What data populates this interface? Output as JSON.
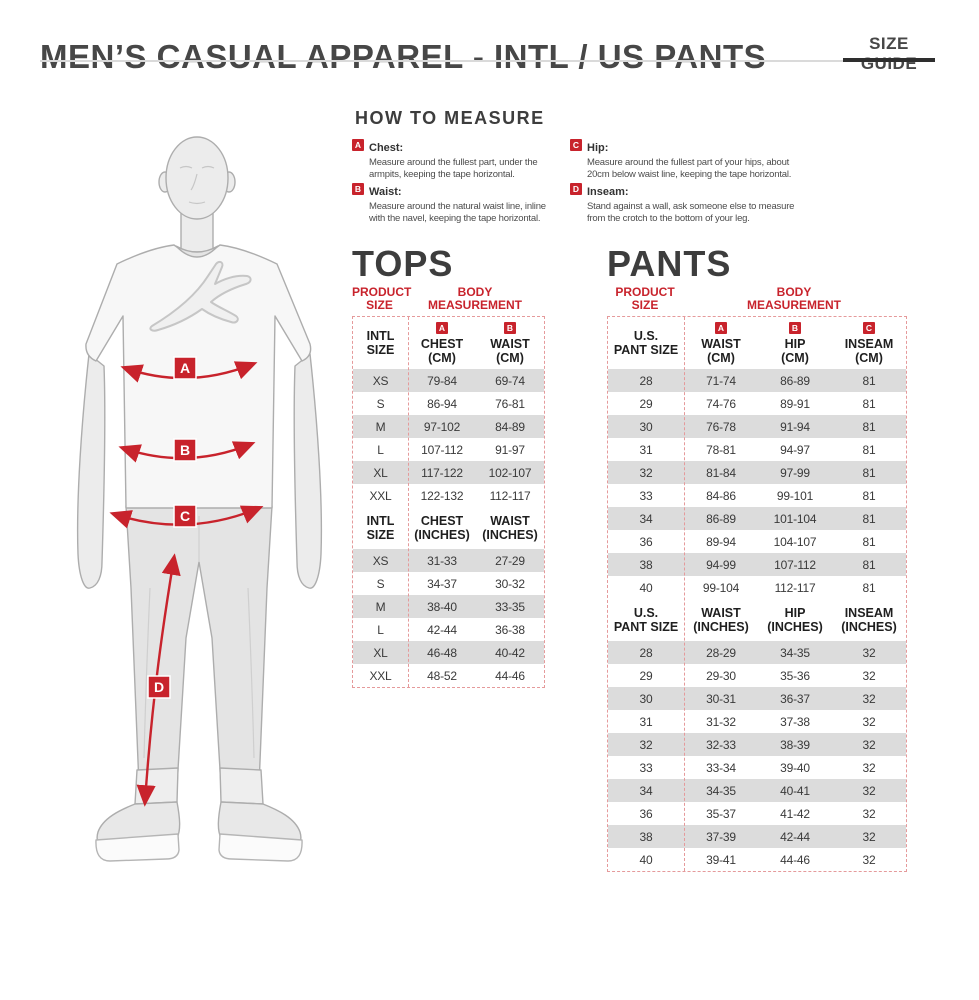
{
  "colors": {
    "accent_red": "#c8232c",
    "heading_gray": "#3d3d3d",
    "row_gray": "#dcdcdc",
    "table_border_pink": "#e59a9b",
    "size_guide_bar": "#2e2e2e"
  },
  "header": {
    "title": "MEN’S CASUAL APPAREL - INTL / US PANTS",
    "size_guide_label": "SIZE GUIDE"
  },
  "how_to_measure": {
    "title": "HOW TO MEASURE",
    "items": [
      {
        "letter": "A",
        "label": "Chest:",
        "text": "Measure around the fullest part, under the armpits, keeping the tape horizontal."
      },
      {
        "letter": "B",
        "label": "Waist:",
        "text": "Measure around the natural waist line, inline with the navel, keeping the tape horizontal."
      },
      {
        "letter": "C",
        "label": "Hip:",
        "text": "Measure around the fullest part of your hips, about 20cm below waist line, keeping the tape horizontal."
      },
      {
        "letter": "D",
        "label": "Inseam:",
        "text": "Stand against a wall, ask someone else to measure from the crotch to the bottom of your leg."
      }
    ]
  },
  "figure": {
    "markers": [
      "A",
      "B",
      "C",
      "D"
    ]
  },
  "tops": {
    "heading": "TOPS",
    "product_size_lines": [
      "PRODUCT",
      "SIZE"
    ],
    "body_measurement_lines": [
      "BODY",
      "MEASUREMENT"
    ],
    "cm": {
      "size_header_lines": [
        "INTL",
        "SIZE"
      ],
      "columns": [
        {
          "letter": "A",
          "name": "CHEST",
          "unit": "(CM)"
        },
        {
          "letter": "B",
          "name": "WAIST",
          "unit": "(CM)"
        }
      ],
      "rows": [
        [
          "XS",
          "79-84",
          "69-74"
        ],
        [
          "S",
          "86-94",
          "76-81"
        ],
        [
          "M",
          "97-102",
          "84-89"
        ],
        [
          "L",
          "107-112",
          "91-97"
        ],
        [
          "XL",
          "117-122",
          "102-107"
        ],
        [
          "XXL",
          "122-132",
          "112-117"
        ]
      ]
    },
    "inches": {
      "size_header_lines": [
        "INTL",
        "SIZE"
      ],
      "columns": [
        {
          "name": "CHEST",
          "unit": "(INCHES)"
        },
        {
          "name": "WAIST",
          "unit": "(INCHES)"
        }
      ],
      "rows": [
        [
          "XS",
          "31-33",
          "27-29"
        ],
        [
          "S",
          "34-37",
          "30-32"
        ],
        [
          "M",
          "38-40",
          "33-35"
        ],
        [
          "L",
          "42-44",
          "36-38"
        ],
        [
          "XL",
          "46-48",
          "40-42"
        ],
        [
          "XXL",
          "48-52",
          "44-46"
        ]
      ]
    }
  },
  "pants": {
    "heading": "PANTS",
    "product_size_lines": [
      "PRODUCT",
      "SIZE"
    ],
    "body_measurement_lines": [
      "BODY",
      "MEASUREMENT"
    ],
    "cm": {
      "size_header_lines": [
        "U.S.",
        "PANT SIZE"
      ],
      "columns": [
        {
          "letter": "A",
          "name": "WAIST",
          "unit": "(CM)"
        },
        {
          "letter": "B",
          "name": "HIP",
          "unit": "(CM)"
        },
        {
          "letter": "C",
          "name": "INSEAM",
          "unit": "(CM)"
        }
      ],
      "rows": [
        [
          "28",
          "71-74",
          "86-89",
          "81"
        ],
        [
          "29",
          "74-76",
          "89-91",
          "81"
        ],
        [
          "30",
          "76-78",
          "91-94",
          "81"
        ],
        [
          "31",
          "78-81",
          "94-97",
          "81"
        ],
        [
          "32",
          "81-84",
          "97-99",
          "81"
        ],
        [
          "33",
          "84-86",
          "99-101",
          "81"
        ],
        [
          "34",
          "86-89",
          "101-104",
          "81"
        ],
        [
          "36",
          "89-94",
          "104-107",
          "81"
        ],
        [
          "38",
          "94-99",
          "107-112",
          "81"
        ],
        [
          "40",
          "99-104",
          "112-117",
          "81"
        ]
      ]
    },
    "inches": {
      "size_header_lines": [
        "U.S.",
        "PANT SIZE"
      ],
      "columns": [
        {
          "name": "WAIST",
          "unit": "(INCHES)"
        },
        {
          "name": "HIP",
          "unit": "(INCHES)"
        },
        {
          "name": "INSEAM",
          "unit": "(INCHES)"
        }
      ],
      "rows": [
        [
          "28",
          "28-29",
          "34-35",
          "32"
        ],
        [
          "29",
          "29-30",
          "35-36",
          "32"
        ],
        [
          "30",
          "30-31",
          "36-37",
          "32"
        ],
        [
          "31",
          "31-32",
          "37-38",
          "32"
        ],
        [
          "32",
          "32-33",
          "38-39",
          "32"
        ],
        [
          "33",
          "33-34",
          "39-40",
          "32"
        ],
        [
          "34",
          "34-35",
          "40-41",
          "32"
        ],
        [
          "36",
          "35-37",
          "41-42",
          "32"
        ],
        [
          "38",
          "37-39",
          "42-44",
          "32"
        ],
        [
          "40",
          "39-41",
          "44-46",
          "32"
        ]
      ]
    }
  }
}
